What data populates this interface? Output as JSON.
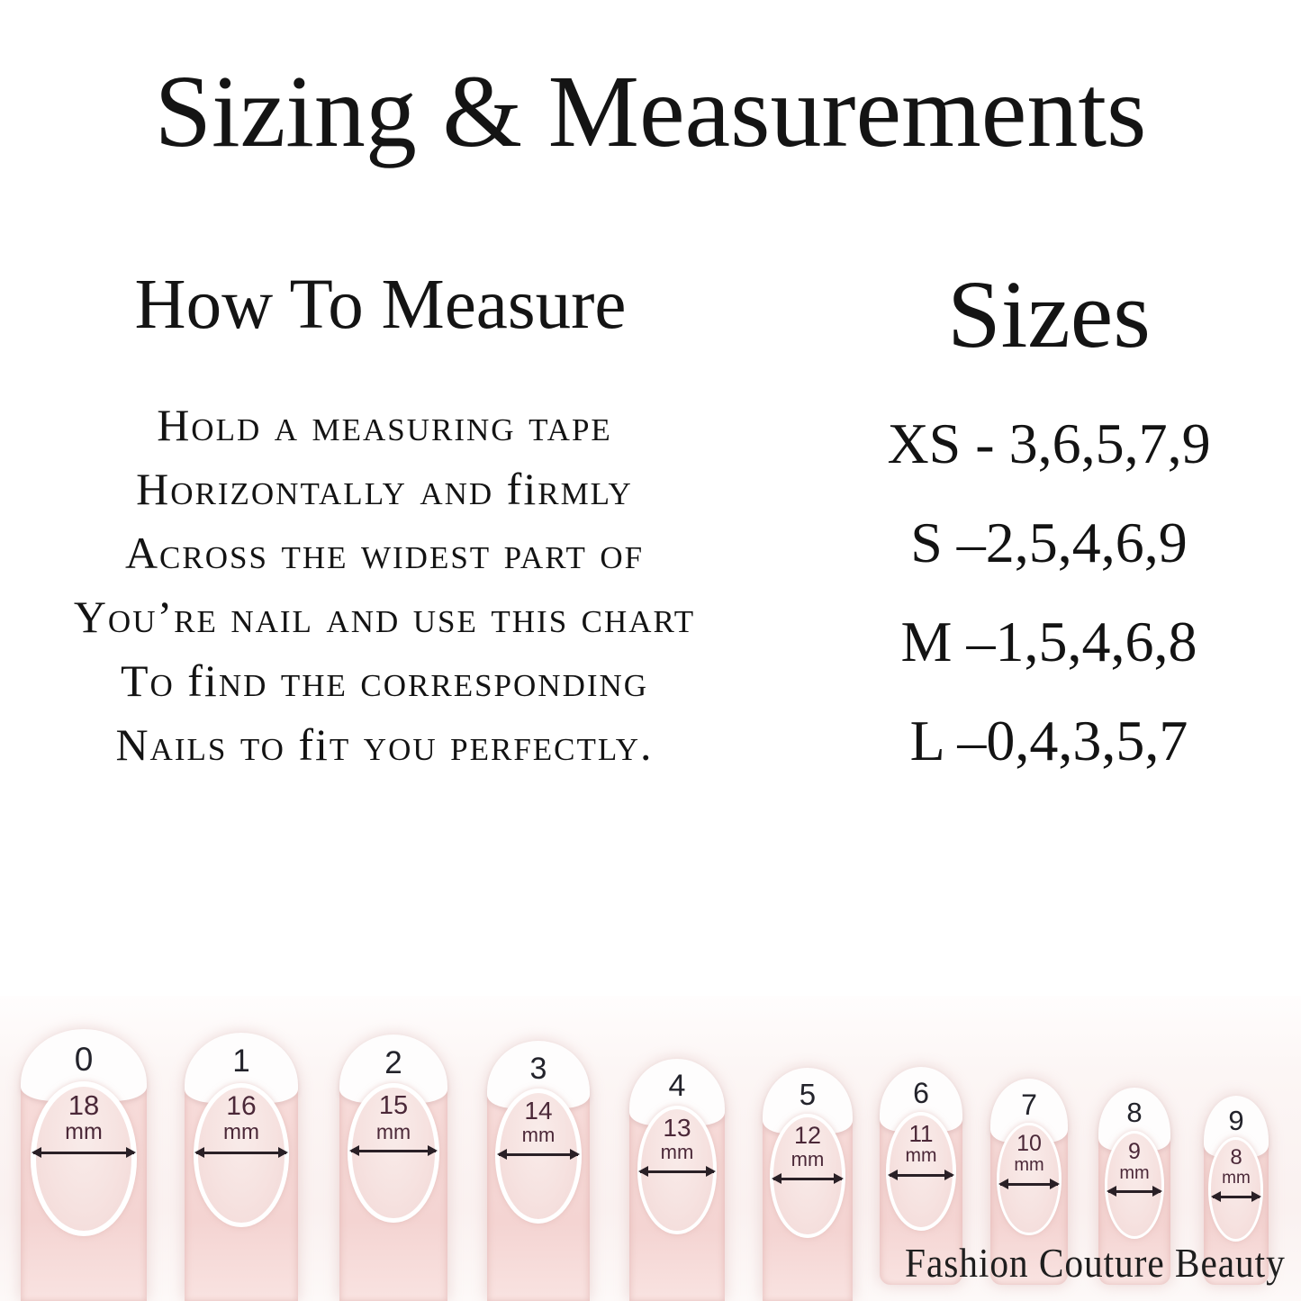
{
  "title": "Sizing & Measurements",
  "how_to_measure": {
    "heading": "How To Measure",
    "instruction_lines": [
      [
        {
          "t": "Hold a measuring tape"
        }
      ],
      [
        {
          "t": "Horizontally and "
        },
        {
          "t": "fi",
          "lowercase": true
        },
        {
          "t": "rmly"
        }
      ],
      [
        {
          "t": "Across the widest part of"
        }
      ],
      [
        {
          "t": "You’re nail and use this chart"
        }
      ],
      [
        {
          "t": "To "
        },
        {
          "t": "fi",
          "lowercase": true
        },
        {
          "t": "nd the corresponding"
        }
      ],
      [
        {
          "t": "Nails to "
        },
        {
          "t": "fi",
          "lowercase": true
        },
        {
          "t": "t you perfectly."
        }
      ]
    ]
  },
  "sizes": {
    "heading": "Sizes",
    "rows": [
      "XS - 3,6,5,7,9",
      "S –2,5,4,6,9",
      "M –1,5,4,6,8",
      "L –0,4,3,5,7"
    ]
  },
  "nail_chart": {
    "description": "Nail width chart, sizes 0-9",
    "nails": [
      {
        "number": "0",
        "width_mm": 18,
        "value_label": "18",
        "unit_label": "mm"
      },
      {
        "number": "1",
        "width_mm": 16,
        "value_label": "16",
        "unit_label": "mm"
      },
      {
        "number": "2",
        "width_mm": 15,
        "value_label": "15",
        "unit_label": "mm"
      },
      {
        "number": "3",
        "width_mm": 14,
        "value_label": "14",
        "unit_label": "mm"
      },
      {
        "number": "4",
        "width_mm": 13,
        "value_label": "13",
        "unit_label": "mm"
      },
      {
        "number": "5",
        "width_mm": 12,
        "value_label": "12",
        "unit_label": "mm"
      },
      {
        "number": "6",
        "width_mm": 11,
        "value_label": "11",
        "unit_label": "mm"
      },
      {
        "number": "7",
        "width_mm": 10,
        "value_label": "10",
        "unit_label": "mm"
      },
      {
        "number": "8",
        "width_mm": 9,
        "value_label": "9",
        "unit_label": "mm"
      },
      {
        "number": "9",
        "width_mm": 8,
        "value_label": "8",
        "unit_label": "mm"
      }
    ]
  },
  "watermark": "Fashion Couture Beauty",
  "colors": {
    "text": "#161616",
    "nail_body_pink": "#f6d9d7",
    "nail_bed_pink": "#f6e4e2",
    "tip_white": "#fefdfd",
    "measure_text": "#4b2838",
    "arrow": "#2a2026",
    "nail_number": "#23232b"
  }
}
